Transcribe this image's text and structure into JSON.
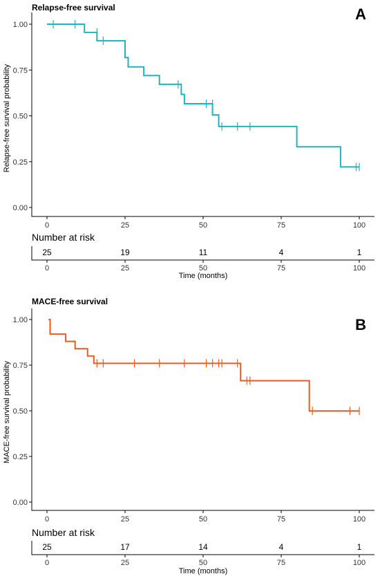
{
  "chart_data": [
    {
      "panel": "A",
      "type": "line",
      "subtype": "kaplan-meier",
      "title": "Relapse-free survival",
      "xlabel": "Time (months)",
      "ylabel": "Relapse-free survival probability",
      "xlim": [
        0,
        100
      ],
      "ylim": [
        0,
        1
      ],
      "x_ticks": [
        0,
        25,
        50,
        75,
        100
      ],
      "y_ticks": [
        0.0,
        0.25,
        0.5,
        0.75,
        1.0
      ],
      "y_tick_labels": [
        "0.00",
        "0.25",
        "0.50",
        "0.75",
        "1.00"
      ],
      "grid": false,
      "color": "#1fb3bf",
      "steps": [
        {
          "x": 0,
          "y": 1.0
        },
        {
          "x": 12,
          "y": 0.955
        },
        {
          "x": 16,
          "y": 0.91
        },
        {
          "x": 25,
          "y": 0.818
        },
        {
          "x": 26,
          "y": 0.767
        },
        {
          "x": 31,
          "y": 0.72
        },
        {
          "x": 36,
          "y": 0.672
        },
        {
          "x": 43,
          "y": 0.617
        },
        {
          "x": 44,
          "y": 0.566
        },
        {
          "x": 53,
          "y": 0.505
        },
        {
          "x": 55,
          "y": 0.442
        },
        {
          "x": 80,
          "y": 0.331
        },
        {
          "x": 94,
          "y": 0.221
        },
        {
          "x": 100,
          "y": 0.221
        }
      ],
      "censors": [
        {
          "x": 2,
          "y": 1.0
        },
        {
          "x": 9,
          "y": 1.0
        },
        {
          "x": 16,
          "y": 0.955
        },
        {
          "x": 18,
          "y": 0.91
        },
        {
          "x": 42,
          "y": 0.672
        },
        {
          "x": 51,
          "y": 0.566
        },
        {
          "x": 53,
          "y": 0.566
        },
        {
          "x": 56,
          "y": 0.442
        },
        {
          "x": 61,
          "y": 0.442
        },
        {
          "x": 65,
          "y": 0.442
        },
        {
          "x": 99,
          "y": 0.221
        },
        {
          "x": 100,
          "y": 0.221
        }
      ],
      "risk_table": {
        "title": "Number at risk",
        "times": [
          0,
          25,
          50,
          75,
          100
        ],
        "counts": [
          25,
          19,
          11,
          4,
          1
        ]
      }
    },
    {
      "panel": "B",
      "type": "line",
      "subtype": "kaplan-meier",
      "title": "MACE-free survival",
      "xlabel": "Time (months)",
      "ylabel": "MACE-free survival probability",
      "xlim": [
        0,
        100
      ],
      "ylim": [
        0,
        1
      ],
      "x_ticks": [
        0,
        25,
        50,
        75,
        100
      ],
      "y_ticks": [
        0.0,
        0.25,
        0.5,
        0.75,
        1.0
      ],
      "y_tick_labels": [
        "0.00",
        "0.25",
        "0.50",
        "0.75",
        "1.00"
      ],
      "grid": false,
      "color": "#e85a1e",
      "steps": [
        {
          "x": 0.5,
          "y": 1.0
        },
        {
          "x": 1,
          "y": 0.92
        },
        {
          "x": 6,
          "y": 0.88
        },
        {
          "x": 9,
          "y": 0.84
        },
        {
          "x": 13,
          "y": 0.8
        },
        {
          "x": 15,
          "y": 0.76
        },
        {
          "x": 62,
          "y": 0.665
        },
        {
          "x": 84,
          "y": 0.499
        },
        {
          "x": 100,
          "y": 0.499
        }
      ],
      "censors": [
        {
          "x": 16,
          "y": 0.76
        },
        {
          "x": 18,
          "y": 0.76
        },
        {
          "x": 28,
          "y": 0.76
        },
        {
          "x": 36,
          "y": 0.76
        },
        {
          "x": 44,
          "y": 0.76
        },
        {
          "x": 51,
          "y": 0.76
        },
        {
          "x": 53,
          "y": 0.76
        },
        {
          "x": 55,
          "y": 0.76
        },
        {
          "x": 56,
          "y": 0.76
        },
        {
          "x": 61,
          "y": 0.76
        },
        {
          "x": 64,
          "y": 0.665
        },
        {
          "x": 65,
          "y": 0.665
        },
        {
          "x": 85,
          "y": 0.499
        },
        {
          "x": 97,
          "y": 0.499
        },
        {
          "x": 100,
          "y": 0.499
        }
      ],
      "risk_table": {
        "title": "Number at risk",
        "times": [
          0,
          25,
          50,
          75,
          100
        ],
        "counts": [
          25,
          17,
          14,
          4,
          1
        ]
      }
    }
  ]
}
